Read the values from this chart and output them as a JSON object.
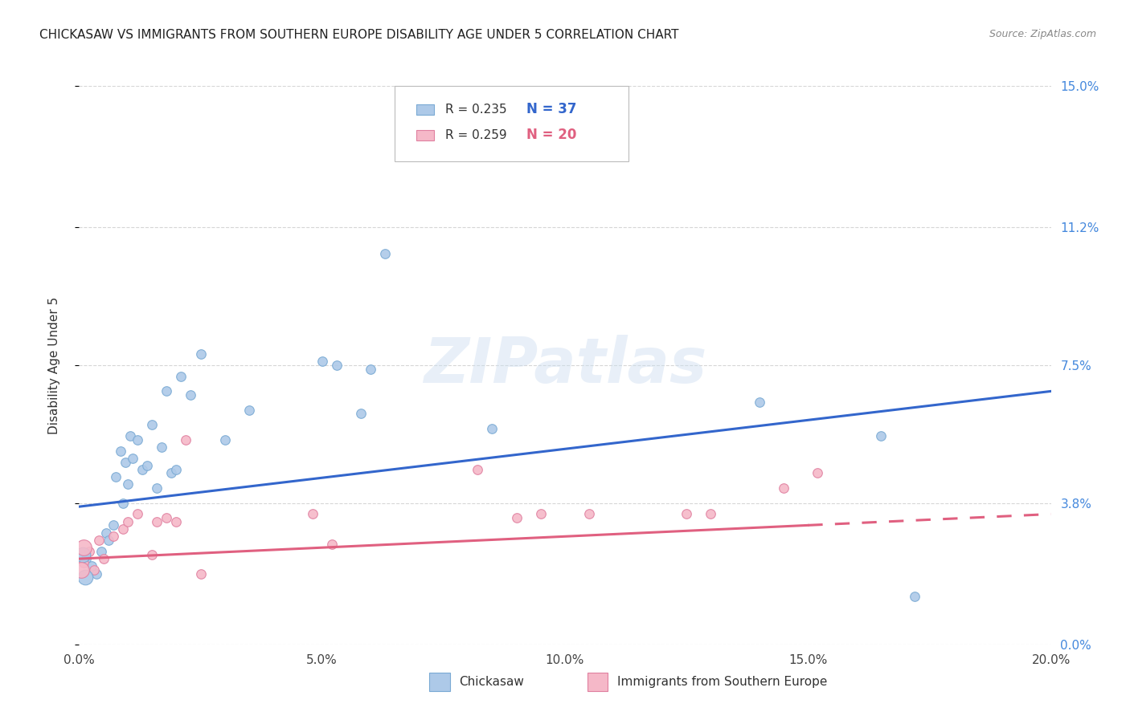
{
  "title": "CHICKASAW VS IMMIGRANTS FROM SOUTHERN EUROPE DISABILITY AGE UNDER 5 CORRELATION CHART",
  "source": "Source: ZipAtlas.com",
  "ylabel": "Disability Age Under 5",
  "xlabel_vals": [
    0.0,
    5.0,
    10.0,
    15.0,
    20.0
  ],
  "ylabel_vals": [
    0.0,
    3.8,
    7.5,
    11.2,
    15.0
  ],
  "xlim": [
    0.0,
    20.0
  ],
  "ylim": [
    0.0,
    15.0
  ],
  "watermark": "ZIPatlas",
  "chickasaw_color": "#adc9e8",
  "chickasaw_edge": "#7aaad4",
  "southern_europe_color": "#f5b8c8",
  "southern_europe_edge": "#e080a0",
  "line1_color": "#3366cc",
  "line2_color": "#e06080",
  "background_color": "#ffffff",
  "grid_color": "#cccccc",
  "title_color": "#222222",
  "right_tick_color": "#4488dd",
  "chickasaw_x": [
    0.15,
    0.25,
    0.35,
    0.45,
    0.55,
    0.6,
    0.7,
    0.75,
    0.85,
    0.9,
    0.95,
    1.0,
    1.05,
    1.1,
    1.2,
    1.3,
    1.4,
    1.5,
    1.6,
    1.7,
    1.8,
    1.9,
    2.0,
    2.1,
    2.3,
    2.5,
    3.0,
    3.5,
    5.0,
    5.3,
    5.8,
    6.0,
    6.3,
    8.5,
    14.0,
    16.5,
    17.2
  ],
  "chickasaw_y": [
    2.3,
    2.1,
    1.9,
    2.5,
    3.0,
    2.8,
    3.2,
    4.5,
    5.2,
    3.8,
    4.9,
    4.3,
    5.6,
    5.0,
    5.5,
    4.7,
    4.8,
    5.9,
    4.2,
    5.3,
    6.8,
    4.6,
    4.7,
    7.2,
    6.7,
    7.8,
    5.5,
    6.3,
    7.6,
    7.5,
    6.2,
    7.4,
    10.5,
    5.8,
    6.5,
    5.6,
    1.3
  ],
  "southern_europe_x": [
    0.1,
    0.2,
    0.3,
    0.4,
    0.5,
    0.7,
    0.9,
    1.0,
    1.2,
    1.5,
    1.6,
    1.8,
    2.0,
    2.2,
    2.5,
    4.8,
    5.2,
    8.2,
    9.0,
    9.5,
    10.5,
    12.5,
    13.0,
    14.5,
    15.2
  ],
  "southern_europe_y": [
    2.2,
    2.5,
    2.0,
    2.8,
    2.3,
    2.9,
    3.1,
    3.3,
    3.5,
    2.4,
    3.3,
    3.4,
    3.3,
    5.5,
    1.9,
    3.5,
    2.7,
    4.7,
    3.4,
    3.5,
    3.5,
    3.5,
    3.5,
    4.2,
    4.6
  ],
  "dot_size": 70,
  "line1_x0": 0.0,
  "line1_y0": 3.7,
  "line1_x1": 20.0,
  "line1_y1": 6.8,
  "line2_x0": 0.0,
  "line2_y0": 2.3,
  "line2_x1": 20.0,
  "line2_y1": 3.5,
  "line2_solid_end": 15.0
}
